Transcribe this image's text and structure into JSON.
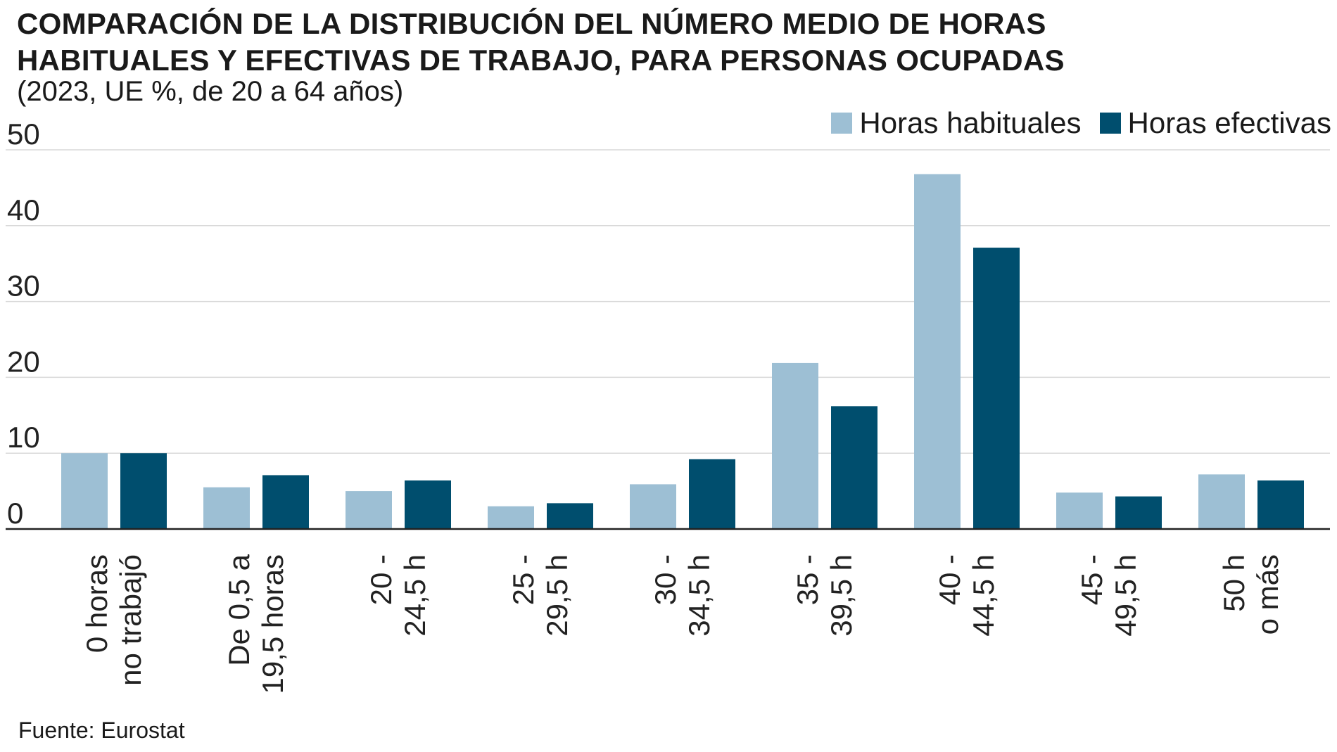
{
  "colors": {
    "habituales": "#9dbfd4",
    "efectivas": "#004e6e",
    "grid": "#d9d9d9",
    "axis": "#222222"
  },
  "chart_data": {
    "type": "bar",
    "title_lines": [
      "COMPARACIÓN DE LA DISTRIBUCIÓN DEL NÚMERO MEDIO DE HORAS",
      "HABITUALES Y EFECTIVAS DE TRABAJO, PARA PERSONAS OCUPADAS"
    ],
    "subtitle": "(2023, UE %, de 20 a 64 años)",
    "categories": [
      [
        "0 horas",
        "no trabajó"
      ],
      [
        "De 0,5 a",
        "19,5 horas"
      ],
      [
        "20 -",
        "24,5 h"
      ],
      [
        "25 -",
        "29,5 h"
      ],
      [
        "30 -",
        "34,5 h"
      ],
      [
        "35 -",
        "39,5 h"
      ],
      [
        "40 -",
        "44,5 h"
      ],
      [
        "45 -",
        "49,5 h"
      ],
      [
        "50 h",
        "o más"
      ]
    ],
    "series": [
      {
        "name": "Horas habituales",
        "values": [
          10.0,
          5.5,
          5.0,
          3.0,
          5.9,
          21.9,
          46.8,
          4.8,
          7.2
        ]
      },
      {
        "name": "Horas efectivas",
        "values": [
          10.0,
          7.1,
          6.4,
          3.4,
          9.2,
          16.2,
          37.1,
          4.3,
          6.4
        ]
      }
    ],
    "yticks": [
      0,
      10,
      20,
      30,
      40,
      50
    ],
    "ylim": [
      0,
      50
    ],
    "grid": true,
    "legend_position": "top-right",
    "xlabel": "",
    "ylabel": ""
  },
  "source": "Fuente: Eurostat"
}
